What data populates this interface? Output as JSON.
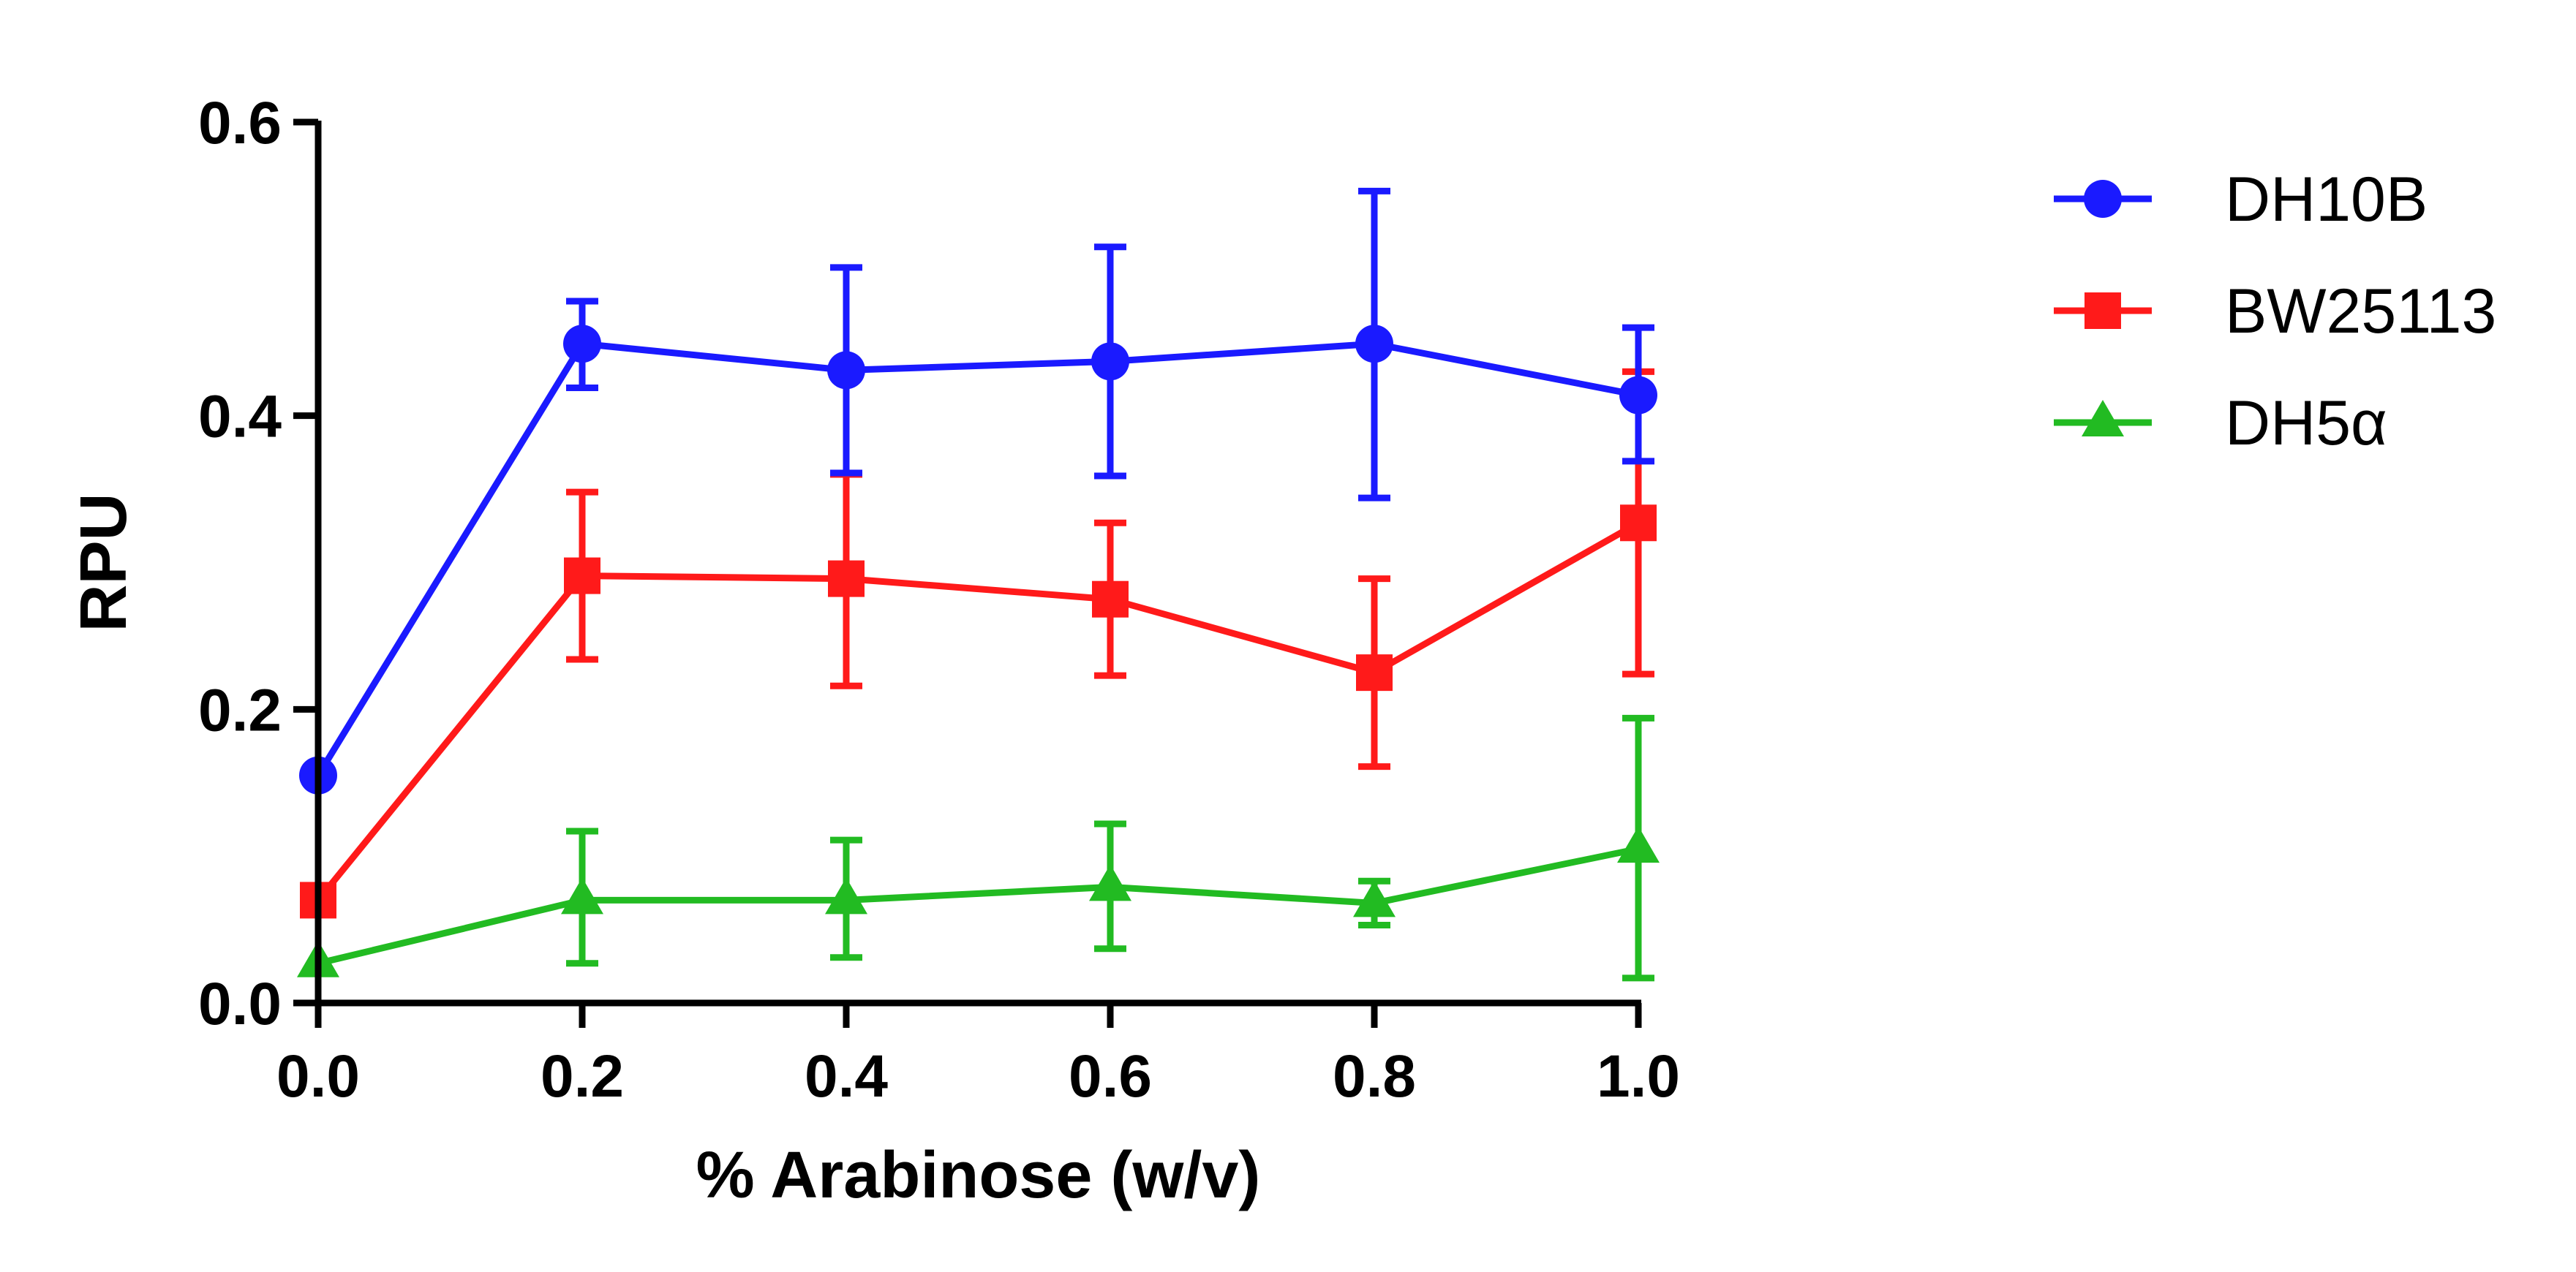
{
  "chart_data": {
    "type": "line",
    "xlabel": "% Arabinose (w/v)",
    "ylabel": "RPU",
    "xlim": [
      0.0,
      1.0
    ],
    "ylim": [
      0.0,
      0.6
    ],
    "x_ticks": [
      "0.0",
      "0.2",
      "0.4",
      "0.6",
      "0.8",
      "1.0"
    ],
    "y_ticks": [
      "0.0",
      "0.2",
      "0.4",
      "0.6"
    ],
    "grid": false,
    "legend_position": "top-right, outside plot",
    "x": [
      0.0,
      0.2,
      0.4,
      0.6,
      0.8,
      1.0
    ],
    "series": [
      {
        "name": "DH10B",
        "color": "#1a1aff",
        "marker": "circle",
        "values": [
          0.155,
          0.449,
          0.431,
          0.437,
          0.449,
          0.414
        ],
        "err_low": [
          0.155,
          0.419,
          0.361,
          0.359,
          0.344,
          0.369
        ],
        "err_high": [
          0.155,
          0.478,
          0.501,
          0.515,
          0.553,
          0.46
        ]
      },
      {
        "name": "BW25113",
        "color": "#ff1a1a",
        "marker": "square",
        "values": [
          0.07,
          0.291,
          0.289,
          0.275,
          0.225,
          0.327
        ],
        "err_low": [
          0.07,
          0.234,
          0.216,
          0.223,
          0.161,
          0.224
        ],
        "err_high": [
          0.07,
          0.348,
          0.36,
          0.327,
          0.289,
          0.43
        ]
      },
      {
        "name": "DH5α",
        "color": "#22bb22",
        "marker": "triangle",
        "values": [
          0.027,
          0.07,
          0.07,
          0.079,
          0.068,
          0.105
        ],
        "err_low": [
          0.027,
          0.027,
          0.031,
          0.037,
          0.053,
          0.017
        ],
        "err_high": [
          0.027,
          0.117,
          0.111,
          0.122,
          0.083,
          0.194
        ]
      }
    ]
  }
}
